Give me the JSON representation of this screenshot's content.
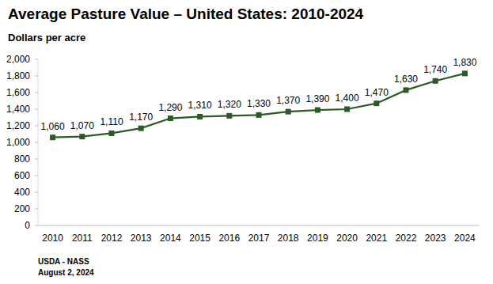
{
  "chart_data": {
    "type": "line",
    "title": "Average Pasture Value – United States: 2010-2024",
    "y_label": "Dollars per acre",
    "annotations": [
      "USDA - NASS",
      "August 2, 2024"
    ],
    "categories": [
      "2010",
      "2011",
      "2012",
      "2013",
      "2014",
      "2015",
      "2016",
      "2017",
      "2018",
      "2019",
      "2020",
      "2021",
      "2022",
      "2023",
      "2024"
    ],
    "values": [
      1060,
      1070,
      1110,
      1170,
      1290,
      1310,
      1320,
      1330,
      1370,
      1390,
      1400,
      1470,
      1630,
      1740,
      1830
    ],
    "value_labels": [
      "1,060",
      "1,070",
      "1,110",
      "1,170",
      "1,290",
      "1,310",
      "1,320",
      "1,330",
      "1,370",
      "1,390",
      "1,400",
      "1,470",
      "1,630",
      "1,740",
      "1,830"
    ],
    "color": "#2c5a27",
    "marker": "square",
    "line_style": "solid",
    "data_labels": true,
    "grid": false,
    "ylim": [
      0,
      2000
    ],
    "yticks": [
      0,
      200,
      400,
      600,
      800,
      {
        "value": 1000,
        "label": "1,000"
      },
      {
        "value": 1200,
        "label": "1,200"
      },
      {
        "value": 1400,
        "label": "1,400"
      },
      {
        "value": 1600,
        "label": "1,600"
      },
      {
        "value": 1800,
        "label": "1,800"
      },
      {
        "value": 2000,
        "label": "2,000"
      }
    ]
  }
}
